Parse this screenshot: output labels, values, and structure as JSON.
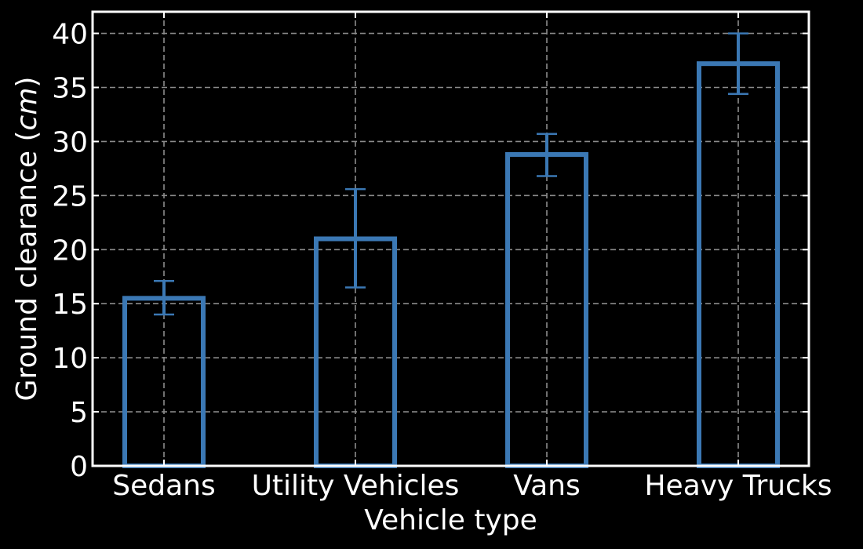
{
  "chart_data": {
    "type": "bar",
    "categories": [
      "Sedans",
      "Utility Vehicles",
      "Vans",
      "Heavy Trucks"
    ],
    "values": [
      15.5,
      21.0,
      28.8,
      37.2
    ],
    "error_low": [
      14.0,
      16.5,
      26.8,
      34.4
    ],
    "error_high": [
      17.1,
      25.6,
      30.7,
      40.0
    ],
    "xlabel": "Vehicle type",
    "ylabel_text": "Ground clearance (",
    "ylabel_unit": "cm",
    "ylabel_close": ")",
    "ylim": [
      0,
      42
    ],
    "yticks": [
      "0",
      "5",
      "10",
      "15",
      "20",
      "25",
      "30",
      "35",
      "40"
    ],
    "grid": true,
    "background_color": "#000000",
    "bar_edge_color": "#3b78b4",
    "bar_fill": "none",
    "error_color": "#3b78b4",
    "text_color": "#ffffff"
  }
}
